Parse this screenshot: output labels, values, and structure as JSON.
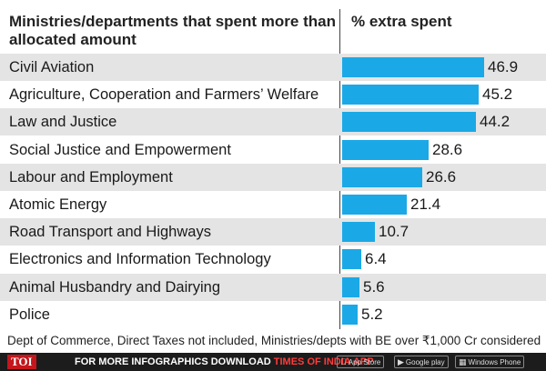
{
  "header": {
    "left_title": "Ministries/departments that spent more than allocated amount",
    "right_title": "% extra spent"
  },
  "chart_data": {
    "type": "bar",
    "orientation": "horizontal",
    "categories": [
      "Civil Aviation",
      "Agriculture, Cooperation and Farmers’ Welfare",
      "Law and Justice",
      "Social Justice and Empowerment",
      "Labour and Employment",
      "Atomic Energy",
      "Road Transport and Highways",
      "Electronics and Information Technology",
      "Animal Husbandry and Dairying",
      "Police"
    ],
    "values": [
      46.9,
      45.2,
      44.2,
      28.6,
      26.6,
      21.4,
      10.7,
      6.4,
      5.6,
      5.2
    ],
    "value_labels": [
      "46.9",
      "45.2",
      "44.2",
      "28.6",
      "26.6",
      "21.4",
      "10.7",
      "6.4",
      "5.6",
      "5.2"
    ],
    "xlim": [
      0,
      50
    ],
    "bar_color": "#1aa9e6",
    "grid": false
  },
  "footnote": "Dept of Commerce, Direct Taxes not included, Ministries/depts with BE over ₹1,000 Cr considered",
  "footer": {
    "logo": "TOI",
    "text": "FOR MORE  INFOGRAPHICS DOWNLOAD",
    "brand": "TIMES OF INDIA  APP",
    "badges": [
      {
        "icon": "apple-icon",
        "label": "App Store"
      },
      {
        "icon": "play-icon",
        "label": "Google play"
      },
      {
        "icon": "windows-icon",
        "label": "Windows Phone"
      }
    ]
  }
}
